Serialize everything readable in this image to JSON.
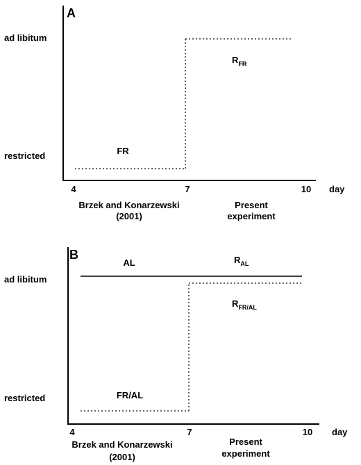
{
  "panels": [
    {
      "letter": "A",
      "y_levels": {
        "high": "ad libitum",
        "low": "restricted"
      },
      "x_ticks": [
        "4",
        "7",
        "10"
      ],
      "x_unit": "day",
      "periods": [
        {
          "line1": "Brzek and Konarzewski",
          "line2": "(2001)"
        },
        {
          "line1": "Present",
          "line2": "experiment"
        }
      ],
      "curve_labels": [
        {
          "main": "FR",
          "sub": ""
        },
        {
          "main": "R",
          "sub": "FR"
        }
      ]
    },
    {
      "letter": "B",
      "y_levels": {
        "high": "ad libitum",
        "low": "restricted"
      },
      "x_ticks": [
        "4",
        "7",
        "10"
      ],
      "x_unit": "day",
      "periods": [
        {
          "line1": "Brzek and Konarzewski",
          "line2": "(2001)"
        },
        {
          "line1": "Present",
          "line2": "experiment"
        }
      ],
      "curve_labels": [
        {
          "main": "AL",
          "sub": ""
        },
        {
          "main": "R",
          "sub": "AL"
        },
        {
          "main": "R",
          "sub": "FR/AL"
        },
        {
          "main": "FR/AL",
          "sub": ""
        }
      ]
    }
  ]
}
